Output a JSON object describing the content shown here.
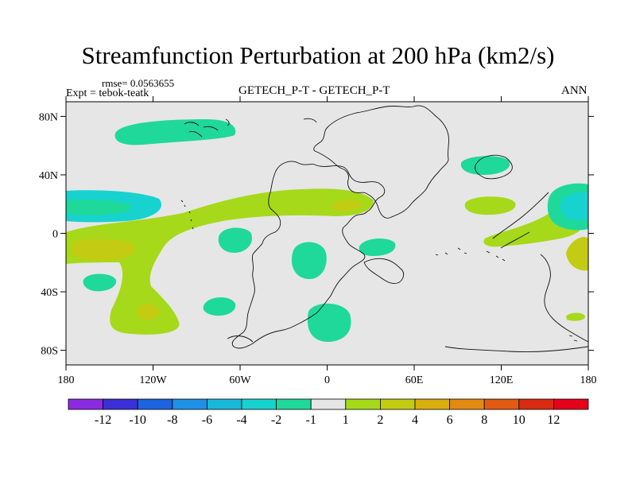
{
  "chart_data": {
    "type": "contour-map",
    "title": "Streamfunction Perturbation at 200 hPa (km2/s)",
    "left_string": "rmse= 0.0563655",
    "left_string_2": "Expt = tebok-teatk",
    "center_string": "GETECH_P-T - GETECH_P-T",
    "right_string": "ANN",
    "rmse": 0.0563655,
    "xlim": [
      -180,
      180
    ],
    "ylim": [
      -90,
      90
    ],
    "x_ticks": [
      {
        "value": -180,
        "label": "180"
      },
      {
        "value": -120,
        "label": "120W"
      },
      {
        "value": -60,
        "label": "60W"
      },
      {
        "value": 0,
        "label": "0"
      },
      {
        "value": 60,
        "label": "60E"
      },
      {
        "value": 120,
        "label": "120E"
      },
      {
        "value": 180,
        "label": "180"
      }
    ],
    "y_ticks": [
      {
        "value": 80,
        "label": "80N"
      },
      {
        "value": 40,
        "label": "40N"
      },
      {
        "value": 0,
        "label": "0"
      },
      {
        "value": -40,
        "label": "40S"
      },
      {
        "value": -80,
        "label": "80S"
      }
    ],
    "colorbar": {
      "colors": [
        "#8a2be2",
        "#3b30d6",
        "#1c64e0",
        "#1e90e6",
        "#18b9d8",
        "#18d2d0",
        "#1fd99a",
        "#e6e6e6",
        "#a6d91a",
        "#c3cc12",
        "#d9ae0f",
        "#e38a12",
        "#e35a12",
        "#d92a12",
        "#e6001a"
      ],
      "levels": [
        {
          "value": -12,
          "label": "-12"
        },
        {
          "value": -10,
          "label": "-10"
        },
        {
          "value": -8,
          "label": "-8"
        },
        {
          "value": -6,
          "label": "-6"
        },
        {
          "value": -4,
          "label": "-4"
        },
        {
          "value": -2,
          "label": "-2"
        },
        {
          "value": -1,
          "label": "-1"
        },
        {
          "value": 1,
          "label": "1"
        },
        {
          "value": 2,
          "label": "2"
        },
        {
          "value": 4,
          "label": "4"
        },
        {
          "value": 6,
          "label": "6"
        },
        {
          "value": 8,
          "label": "8"
        },
        {
          "value": 10,
          "label": "10"
        },
        {
          "value": 12,
          "label": "12"
        }
      ]
    },
    "regions": [
      {
        "name": "positive-band-tropics",
        "sign": "positive",
        "level_range": [
          1,
          2
        ],
        "lon_range": [
          -180,
          30
        ],
        "lat_range": [
          -65,
          30
        ]
      },
      {
        "name": "positive-core-west-pacific",
        "sign": "positive",
        "level_range": [
          2,
          4
        ],
        "lon_range": [
          -180,
          -140
        ],
        "lat_range": [
          -20,
          -5
        ]
      },
      {
        "name": "positive-core-south-pacific",
        "sign": "positive",
        "level_range": [
          2,
          4
        ],
        "lon_range": [
          -135,
          -120
        ],
        "lat_range": [
          -55,
          -47
        ]
      },
      {
        "name": "positive-core-north-africa",
        "sign": "positive",
        "level_range": [
          2,
          4
        ],
        "lon_range": [
          5,
          25
        ],
        "lat_range": [
          15,
          22
        ]
      },
      {
        "name": "positive-east-asia",
        "sign": "positive",
        "level_range": [
          1,
          2
        ],
        "lon_range": [
          100,
          135
        ],
        "lat_range": [
          10,
          25
        ]
      },
      {
        "name": "positive-west-pacific",
        "sign": "positive",
        "level_range": [
          1,
          2
        ],
        "lon_range": [
          110,
          180
        ],
        "lat_range": [
          -15,
          30
        ]
      },
      {
        "name": "positive-east-edge",
        "sign": "positive",
        "level_range": [
          2,
          4
        ],
        "lon_range": [
          165,
          180
        ],
        "lat_range": [
          -25,
          0
        ]
      },
      {
        "name": "positive-small-south",
        "sign": "positive",
        "level_range": [
          1,
          2
        ],
        "lon_range": [
          170,
          180
        ],
        "lat_range": [
          -58,
          -54
        ]
      },
      {
        "name": "negative-arctic-pacific",
        "sign": "negative",
        "level_range": [
          -2,
          -1
        ],
        "lon_range": [
          -145,
          -65
        ],
        "lat_range": [
          63,
          78
        ]
      },
      {
        "name": "negative-north-pacific",
        "sign": "negative",
        "level_range": [
          -4,
          -2
        ],
        "lon_range": [
          -180,
          -120
        ],
        "lat_range": [
          10,
          28
        ]
      },
      {
        "name": "negative-west-atlantic",
        "sign": "negative",
        "level_range": [
          -2,
          -1
        ],
        "lon_range": [
          -75,
          -55
        ],
        "lat_range": [
          -10,
          5
        ]
      },
      {
        "name": "negative-south-pacific-small",
        "sign": "negative",
        "level_range": [
          -2,
          -1
        ],
        "lon_range": [
          -165,
          -140
        ],
        "lat_range": [
          -35,
          -25
        ]
      },
      {
        "name": "negative-south-atlantic-west",
        "sign": "negative",
        "level_range": [
          -2,
          -1
        ],
        "lon_range": [
          -85,
          -65
        ],
        "lat_range": [
          -50,
          -40
        ]
      },
      {
        "name": "negative-south-atlantic",
        "sign": "negative",
        "level_range": [
          -2,
          -1
        ],
        "lon_range": [
          -25,
          0
        ],
        "lat_range": [
          -30,
          -5
        ]
      },
      {
        "name": "negative-southern-ocean",
        "sign": "negative",
        "level_range": [
          -2,
          -1
        ],
        "lon_range": [
          -15,
          15
        ],
        "lat_range": [
          -75,
          -50
        ]
      },
      {
        "name": "negative-east-africa",
        "sign": "negative",
        "level_range": [
          -2,
          -1
        ],
        "lon_range": [
          25,
          50
        ],
        "lat_range": [
          -10,
          -2
        ]
      },
      {
        "name": "negative-north-asia",
        "sign": "negative",
        "level_range": [
          -2,
          -1
        ],
        "lon_range": [
          100,
          130
        ],
        "lat_range": [
          45,
          55
        ]
      },
      {
        "name": "negative-north-east-pacific",
        "sign": "negative",
        "level_range": [
          -4,
          -2
        ],
        "lon_range": [
          150,
          180
        ],
        "lat_range": [
          5,
          35
        ]
      }
    ]
  }
}
